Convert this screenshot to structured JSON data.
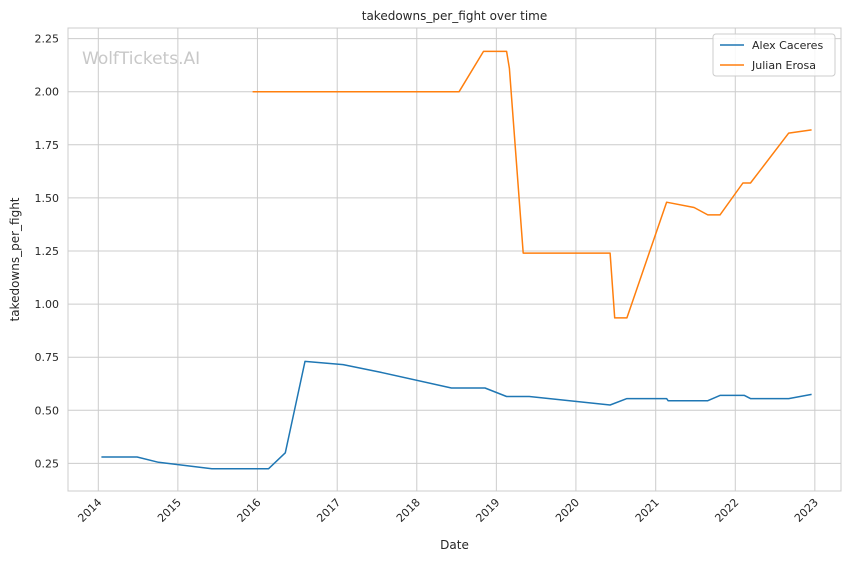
{
  "chart_data": {
    "type": "line",
    "title": "takedowns_per_fight over time",
    "xlabel": "Date",
    "ylabel": "takedowns_per_fight",
    "watermark": "WolfTickets.AI",
    "xlim": [
      "2013-08-15",
      "2023-05-01"
    ],
    "ylim": [
      0.12,
      2.3
    ],
    "x_ticks": [
      "2014-01-01",
      "2015-01-01",
      "2016-01-01",
      "2017-01-01",
      "2018-01-01",
      "2019-01-01",
      "2020-01-01",
      "2021-01-01",
      "2022-01-01",
      "2023-01-01"
    ],
    "x_tick_labels": [
      "2014",
      "2015",
      "2016",
      "2017",
      "2018",
      "2019",
      "2020",
      "2021",
      "2022",
      "2023"
    ],
    "y_ticks": [
      0.25,
      0.5,
      0.75,
      1.0,
      1.25,
      1.5,
      1.75,
      2.0,
      2.25
    ],
    "y_tick_labels": [
      "0.25",
      "0.50",
      "0.75",
      "1.00",
      "1.25",
      "1.50",
      "1.75",
      "2.00",
      "2.25"
    ],
    "grid": true,
    "legend_position": "top-right",
    "series": [
      {
        "name": "Alex Caceres",
        "color": "#1f77b4",
        "x": [
          "2014-01-15",
          "2014-06-28",
          "2014-10-04",
          "2015-06-06",
          "2016-02-21",
          "2016-05-08",
          "2016-08-06",
          "2017-01-28",
          "2017-07-16",
          "2018-06-09",
          "2018-11-10",
          "2019-02-17",
          "2019-06-01",
          "2020-06-06",
          "2020-08-22",
          "2021-02-20",
          "2021-02-27",
          "2021-08-28",
          "2021-10-23",
          "2022-02-12",
          "2022-03-12",
          "2022-09-03",
          "2022-12-17"
        ],
        "y": [
          0.28,
          0.28,
          0.255,
          0.225,
          0.225,
          0.3,
          0.73,
          0.715,
          0.68,
          0.605,
          0.605,
          0.565,
          0.565,
          0.525,
          0.555,
          0.555,
          0.545,
          0.545,
          0.57,
          0.57,
          0.555,
          0.555,
          0.575
        ]
      },
      {
        "name": "Julian Erosa",
        "color": "#ff7f0e",
        "x": [
          "2015-12-10",
          "2018-07-14",
          "2018-11-03",
          "2019-02-17",
          "2019-03-02",
          "2019-05-04",
          "2020-06-06",
          "2020-06-27",
          "2020-08-22",
          "2021-02-20",
          "2021-06-26",
          "2021-08-28",
          "2021-10-23",
          "2022-02-05",
          "2022-03-12",
          "2022-09-03",
          "2022-12-17"
        ],
        "y": [
          2.0,
          2.0,
          2.19,
          2.19,
          2.11,
          1.24,
          1.24,
          0.935,
          0.935,
          1.48,
          1.455,
          1.42,
          1.42,
          1.57,
          1.57,
          1.805,
          1.82
        ]
      }
    ]
  }
}
